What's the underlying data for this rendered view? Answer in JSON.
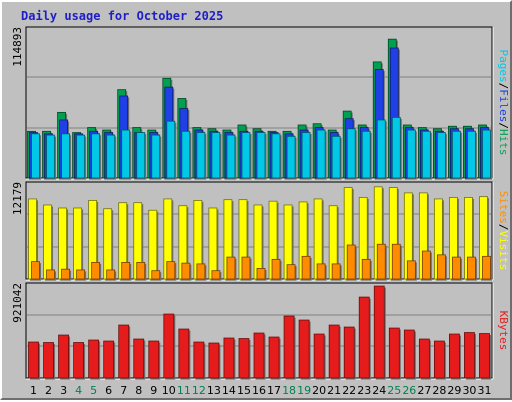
{
  "title": "Daily usage for October 2025",
  "colors": {
    "background": "#c0c0c0",
    "title": "#1e1ec8",
    "hits": "#00a050",
    "files": "#1e40e6",
    "pages": "#00c8e6",
    "visits": "#ffff00",
    "sites": "#ff8c00",
    "kbytes": "#e61c1c",
    "weekend_day": "#008050",
    "weekday": "#000000"
  },
  "chart_data": [
    {
      "type": "bar",
      "name": "hits-files-pages",
      "categories": [
        "1",
        "2",
        "3",
        "4",
        "5",
        "6",
        "7",
        "8",
        "9",
        "10",
        "11",
        "12",
        "13",
        "14",
        "15",
        "16",
        "17",
        "18",
        "19",
        "20",
        "21",
        "22",
        "23",
        "24",
        "25",
        "26",
        "27",
        "28",
        "29",
        "30",
        "31"
      ],
      "y_axis_max_label": "114893",
      "ylim": [
        0,
        114893
      ],
      "side_label": [
        "Pages",
        "Files",
        "Hits"
      ],
      "series": [
        {
          "name": "Hits",
          "values": [
            37000,
            37000,
            52000,
            36000,
            40000,
            38000,
            70000,
            40000,
            38000,
            79000,
            63000,
            40000,
            39000,
            38000,
            42000,
            39000,
            37000,
            37000,
            42000,
            43000,
            38000,
            53000,
            42000,
            92000,
            110000,
            42000,
            40000,
            39000,
            41000,
            41000,
            42000
          ]
        },
        {
          "name": "Files",
          "values": [
            36000,
            35000,
            46000,
            35000,
            37000,
            36000,
            65000,
            36000,
            36000,
            72000,
            55000,
            38000,
            37000,
            36000,
            37000,
            37000,
            36000,
            35000,
            38000,
            40000,
            36000,
            47000,
            40000,
            86000,
            103000,
            40000,
            38000,
            37000,
            39000,
            39000,
            40000
          ]
        },
        {
          "name": "Pages",
          "values": [
            35000,
            34000,
            35000,
            34000,
            35000,
            34000,
            38000,
            36000,
            34000,
            45000,
            37000,
            36000,
            36000,
            34000,
            36000,
            36000,
            35000,
            33000,
            36000,
            38000,
            33000,
            39000,
            37000,
            46000,
            48000,
            38000,
            37000,
            36000,
            37000,
            37000,
            38000
          ]
        }
      ]
    },
    {
      "type": "bar",
      "name": "visits-sites",
      "categories": [
        "1",
        "2",
        "3",
        "4",
        "5",
        "6",
        "7",
        "8",
        "9",
        "10",
        "11",
        "12",
        "13",
        "14",
        "15",
        "16",
        "17",
        "18",
        "19",
        "20",
        "21",
        "22",
        "23",
        "24",
        "25",
        "26",
        "27",
        "28",
        "29",
        "30",
        "31"
      ],
      "y_axis_max_label": "12179",
      "ylim": [
        0,
        12179
      ],
      "side_label": [
        "Sites",
        "Visits"
      ],
      "series": [
        {
          "name": "Visits",
          "values": [
            10600,
            9800,
            9400,
            9400,
            10400,
            9300,
            10100,
            10100,
            9100,
            10600,
            9700,
            10400,
            9400,
            10500,
            10500,
            9800,
            10300,
            9800,
            10200,
            10600,
            9700,
            12100,
            10800,
            12200,
            12100,
            11400,
            11400,
            10600,
            10800,
            10800,
            10900
          ]
        },
        {
          "name": "Sites",
          "values": [
            2300,
            1200,
            1300,
            1200,
            2200,
            1200,
            2200,
            2200,
            1100,
            2300,
            2100,
            2000,
            1100,
            2900,
            2900,
            1400,
            2600,
            1900,
            3000,
            2000,
            2000,
            4500,
            2600,
            4600,
            4600,
            2400,
            3700,
            3200,
            2900,
            2900,
            3000
          ]
        }
      ]
    },
    {
      "type": "bar",
      "name": "kbytes",
      "categories": [
        "1",
        "2",
        "3",
        "4",
        "5",
        "6",
        "7",
        "8",
        "9",
        "10",
        "11",
        "12",
        "13",
        "14",
        "15",
        "16",
        "17",
        "18",
        "19",
        "20",
        "21",
        "22",
        "23",
        "24",
        "25",
        "26",
        "27",
        "28",
        "29",
        "30",
        "31"
      ],
      "y_axis_max_label": "921042",
      "ylim": [
        0,
        921042
      ],
      "side_label": [
        "KBytes"
      ],
      "series": [
        {
          "name": "KBytes",
          "values": [
            360000,
            355000,
            430000,
            355000,
            380000,
            370000,
            530000,
            390000,
            370000,
            640000,
            490000,
            360000,
            350000,
            400000,
            395000,
            450000,
            410000,
            620000,
            580000,
            440000,
            530000,
            510000,
            810000,
            920000,
            500000,
            480000,
            390000,
            370000,
            440000,
            455000,
            445000
          ]
        }
      ]
    }
  ],
  "day_labels": {
    "weekend_days": [
      "4",
      "5",
      "11",
      "12",
      "18",
      "19",
      "25",
      "26"
    ]
  }
}
